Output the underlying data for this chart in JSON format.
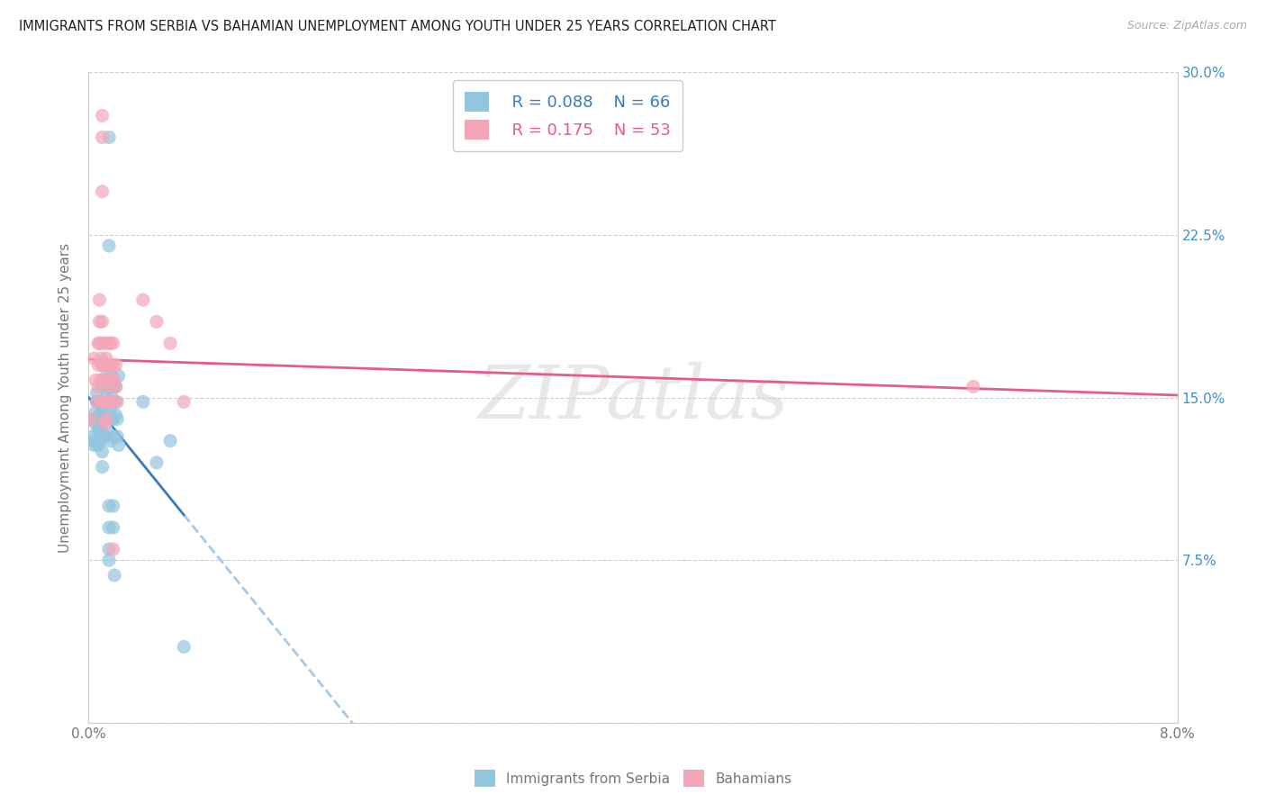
{
  "title": "IMMIGRANTS FROM SERBIA VS BAHAMIAN UNEMPLOYMENT AMONG YOUTH UNDER 25 YEARS CORRELATION CHART",
  "source": "Source: ZipAtlas.com",
  "ylabel": "Unemployment Among Youth under 25 years",
  "legend_r1": "R = 0.088",
  "legend_n1": "N = 66",
  "legend_r2": "R = 0.175",
  "legend_n2": "N = 53",
  "color_blue": "#92c5de",
  "color_pink": "#f4a6b8",
  "trendline_blue": "#3a7bbf",
  "trendline_pink": "#e85a8a",
  "trendline_dashed_color": "#a8c8e8",
  "background": "#ffffff",
  "watermark": "ZIPatlas",
  "xlim": [
    0.0,
    0.08
  ],
  "ylim": [
    0.0,
    0.3
  ],
  "blue_points": [
    [
      0.0002,
      0.14
    ],
    [
      0.0003,
      0.132
    ],
    [
      0.0004,
      0.128
    ],
    [
      0.0004,
      0.13
    ],
    [
      0.0005,
      0.143
    ],
    [
      0.0005,
      0.138
    ],
    [
      0.0006,
      0.152
    ],
    [
      0.0006,
      0.148
    ],
    [
      0.0007,
      0.135
    ],
    [
      0.0007,
      0.128
    ],
    [
      0.0008,
      0.142
    ],
    [
      0.0008,
      0.136
    ],
    [
      0.0008,
      0.13
    ],
    [
      0.0009,
      0.148
    ],
    [
      0.0009,
      0.142
    ],
    [
      0.0009,
      0.136
    ],
    [
      0.001,
      0.165
    ],
    [
      0.001,
      0.155
    ],
    [
      0.001,
      0.148
    ],
    [
      0.001,
      0.14
    ],
    [
      0.001,
      0.132
    ],
    [
      0.001,
      0.125
    ],
    [
      0.001,
      0.118
    ],
    [
      0.0012,
      0.155
    ],
    [
      0.0012,
      0.148
    ],
    [
      0.0012,
      0.14
    ],
    [
      0.0012,
      0.132
    ],
    [
      0.0013,
      0.16
    ],
    [
      0.0013,
      0.15
    ],
    [
      0.0013,
      0.142
    ],
    [
      0.0013,
      0.135
    ],
    [
      0.0014,
      0.155
    ],
    [
      0.0014,
      0.148
    ],
    [
      0.0015,
      0.27
    ],
    [
      0.0015,
      0.22
    ],
    [
      0.0015,
      0.165
    ],
    [
      0.0015,
      0.155
    ],
    [
      0.0015,
      0.148
    ],
    [
      0.0015,
      0.1
    ],
    [
      0.0015,
      0.09
    ],
    [
      0.0015,
      0.08
    ],
    [
      0.0015,
      0.075
    ],
    [
      0.0016,
      0.155
    ],
    [
      0.0016,
      0.145
    ],
    [
      0.0016,
      0.13
    ],
    [
      0.0017,
      0.16
    ],
    [
      0.0017,
      0.15
    ],
    [
      0.0017,
      0.14
    ],
    [
      0.0018,
      0.155
    ],
    [
      0.0018,
      0.148
    ],
    [
      0.0018,
      0.14
    ],
    [
      0.0018,
      0.132
    ],
    [
      0.0018,
      0.1
    ],
    [
      0.0018,
      0.09
    ],
    [
      0.0019,
      0.068
    ],
    [
      0.002,
      0.155
    ],
    [
      0.002,
      0.148
    ],
    [
      0.002,
      0.142
    ],
    [
      0.0021,
      0.14
    ],
    [
      0.0021,
      0.132
    ],
    [
      0.0022,
      0.16
    ],
    [
      0.0022,
      0.128
    ],
    [
      0.004,
      0.148
    ],
    [
      0.005,
      0.12
    ],
    [
      0.006,
      0.13
    ],
    [
      0.007,
      0.035
    ]
  ],
  "pink_points": [
    [
      0.0002,
      0.14
    ],
    [
      0.0004,
      0.168
    ],
    [
      0.0005,
      0.158
    ],
    [
      0.0006,
      0.148
    ],
    [
      0.0007,
      0.175
    ],
    [
      0.0007,
      0.165
    ],
    [
      0.0007,
      0.155
    ],
    [
      0.0008,
      0.195
    ],
    [
      0.0008,
      0.185
    ],
    [
      0.0008,
      0.175
    ],
    [
      0.0009,
      0.168
    ],
    [
      0.0009,
      0.158
    ],
    [
      0.001,
      0.28
    ],
    [
      0.001,
      0.27
    ],
    [
      0.001,
      0.245
    ],
    [
      0.001,
      0.185
    ],
    [
      0.001,
      0.175
    ],
    [
      0.001,
      0.165
    ],
    [
      0.001,
      0.158
    ],
    [
      0.0011,
      0.165
    ],
    [
      0.0011,
      0.158
    ],
    [
      0.0011,
      0.148
    ],
    [
      0.0012,
      0.175
    ],
    [
      0.0012,
      0.165
    ],
    [
      0.0012,
      0.158
    ],
    [
      0.0012,
      0.148
    ],
    [
      0.0012,
      0.138
    ],
    [
      0.0013,
      0.168
    ],
    [
      0.0013,
      0.158
    ],
    [
      0.0013,
      0.148
    ],
    [
      0.0013,
      0.14
    ],
    [
      0.0014,
      0.165
    ],
    [
      0.0014,
      0.158
    ],
    [
      0.0015,
      0.175
    ],
    [
      0.0015,
      0.165
    ],
    [
      0.0015,
      0.155
    ],
    [
      0.0015,
      0.148
    ],
    [
      0.0016,
      0.175
    ],
    [
      0.0016,
      0.165
    ],
    [
      0.0017,
      0.158
    ],
    [
      0.0017,
      0.148
    ],
    [
      0.0018,
      0.175
    ],
    [
      0.0018,
      0.165
    ],
    [
      0.0018,
      0.08
    ],
    [
      0.0019,
      0.158
    ],
    [
      0.002,
      0.165
    ],
    [
      0.002,
      0.155
    ],
    [
      0.0021,
      0.148
    ],
    [
      0.004,
      0.195
    ],
    [
      0.005,
      0.185
    ],
    [
      0.006,
      0.175
    ],
    [
      0.007,
      0.148
    ],
    [
      0.065,
      0.155
    ]
  ]
}
